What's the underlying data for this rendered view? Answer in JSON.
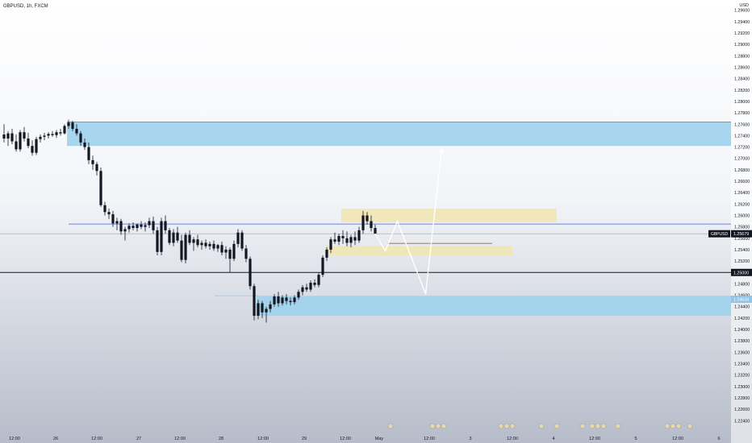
{
  "header": {
    "symbol_title": "GBPUSD, 1h, FXCM"
  },
  "price_axis": {
    "currency": "USD",
    "ticks": [
      "1.29600",
      "1.29400",
      "1.29200",
      "1.29000",
      "1.28800",
      "1.28600",
      "1.28400",
      "1.28200",
      "1.28000",
      "1.27800",
      "1.27600",
      "1.27400",
      "1.27200",
      "1.27000",
      "1.26800",
      "1.26600",
      "1.26400",
      "1.26200",
      "1.26000",
      "1.25800",
      "1.25600",
      "1.25400",
      "1.25200",
      "1.25000",
      "1.24800",
      "1.24600",
      "1.24400",
      "1.24200",
      "1.24000",
      "1.23800",
      "1.23600",
      "1.23400",
      "1.23200",
      "1.23000",
      "1.22800",
      "1.22600",
      "1.22400"
    ],
    "current_price_label": {
      "symbol": "GBPUSD",
      "value": "1.25679"
    },
    "level_label": "1.25000",
    "blue_zone_label": "1.24534"
  },
  "time_axis": {
    "ticks": [
      "12:00",
      "26",
      "12:00",
      "27",
      "12:00",
      "28",
      "12:00",
      "29",
      "12:00",
      "May",
      "12:00",
      "3",
      "12:00",
      "4",
      "12:00",
      "5",
      "12:00",
      "6"
    ]
  },
  "colors": {
    "blue_zone": "#9fd1ec",
    "yellow_zone": "#efe7b4",
    "candle": "#131722",
    "level_line": "#131722",
    "blue_line": "#4a61c9",
    "projection": "#ffffff"
  },
  "chart_data": {
    "type": "candlestick",
    "title": "GBPUSD, 1h, FXCM",
    "ylim": [
      1.2222,
      1.2978
    ],
    "y_ticks": [
      1.296,
      1.294,
      1.292,
      1.29,
      1.288,
      1.286,
      1.284,
      1.282,
      1.28,
      1.278,
      1.276,
      1.274,
      1.272,
      1.27,
      1.268,
      1.266,
      1.264,
      1.262,
      1.26,
      1.258,
      1.256,
      1.254,
      1.252,
      1.25,
      1.248,
      1.246,
      1.244,
      1.242,
      1.24,
      1.238,
      1.236,
      1.234,
      1.232,
      1.23,
      1.228,
      1.226,
      1.224
    ],
    "x_ticks": [
      "12:00",
      "26",
      "12:00",
      "27",
      "12:00",
      "28",
      "12:00",
      "29",
      "12:00",
      "May",
      "12:00",
      "3",
      "12:00",
      "4",
      "12:00",
      "5",
      "12:00",
      "6"
    ],
    "candles": [
      {
        "o": 1.2742,
        "h": 1.276,
        "l": 1.2728,
        "c": 1.2735
      },
      {
        "o": 1.2735,
        "h": 1.2748,
        "l": 1.2722,
        "c": 1.2744
      },
      {
        "o": 1.2744,
        "h": 1.2752,
        "l": 1.2725,
        "c": 1.273
      },
      {
        "o": 1.273,
        "h": 1.2742,
        "l": 1.2712,
        "c": 1.2716
      },
      {
        "o": 1.2716,
        "h": 1.275,
        "l": 1.2712,
        "c": 1.2746
      },
      {
        "o": 1.2746,
        "h": 1.2755,
        "l": 1.273,
        "c": 1.2735
      },
      {
        "o": 1.2735,
        "h": 1.2745,
        "l": 1.2718,
        "c": 1.2722
      },
      {
        "o": 1.2722,
        "h": 1.2732,
        "l": 1.2705,
        "c": 1.271
      },
      {
        "o": 1.271,
        "h": 1.2738,
        "l": 1.2706,
        "c": 1.2734
      },
      {
        "o": 1.2734,
        "h": 1.2742,
        "l": 1.2728,
        "c": 1.2738
      },
      {
        "o": 1.2738,
        "h": 1.2745,
        "l": 1.2732,
        "c": 1.274
      },
      {
        "o": 1.274,
        "h": 1.2746,
        "l": 1.2735,
        "c": 1.2743
      },
      {
        "o": 1.2743,
        "h": 1.2748,
        "l": 1.2738,
        "c": 1.2741
      },
      {
        "o": 1.2741,
        "h": 1.275,
        "l": 1.2736,
        "c": 1.2746
      },
      {
        "o": 1.2746,
        "h": 1.2752,
        "l": 1.274,
        "c": 1.2744
      },
      {
        "o": 1.2744,
        "h": 1.276,
        "l": 1.2742,
        "c": 1.2757
      },
      {
        "o": 1.2757,
        "h": 1.2768,
        "l": 1.2752,
        "c": 1.2763
      },
      {
        "o": 1.2763,
        "h": 1.2766,
        "l": 1.2748,
        "c": 1.2752
      },
      {
        "o": 1.2752,
        "h": 1.276,
        "l": 1.274,
        "c": 1.2744
      },
      {
        "o": 1.2744,
        "h": 1.2748,
        "l": 1.2722,
        "c": 1.2728
      },
      {
        "o": 1.2728,
        "h": 1.2735,
        "l": 1.2715,
        "c": 1.272
      },
      {
        "o": 1.272,
        "h": 1.2728,
        "l": 1.269,
        "c": 1.2697
      },
      {
        "o": 1.2697,
        "h": 1.2705,
        "l": 1.268,
        "c": 1.269
      },
      {
        "o": 1.269,
        "h": 1.2694,
        "l": 1.267,
        "c": 1.2678
      },
      {
        "o": 1.2678,
        "h": 1.2684,
        "l": 1.2615,
        "c": 1.2618
      },
      {
        "o": 1.2618,
        "h": 1.2624,
        "l": 1.26,
        "c": 1.2606
      },
      {
        "o": 1.2606,
        "h": 1.2612,
        "l": 1.2594,
        "c": 1.2602
      },
      {
        "o": 1.2602,
        "h": 1.2608,
        "l": 1.258,
        "c": 1.2586
      },
      {
        "o": 1.2586,
        "h": 1.2596,
        "l": 1.2574,
        "c": 1.259
      },
      {
        "o": 1.259,
        "h": 1.2594,
        "l": 1.2566,
        "c": 1.2572
      },
      {
        "o": 1.2572,
        "h": 1.258,
        "l": 1.2556,
        "c": 1.2576
      },
      {
        "o": 1.2576,
        "h": 1.2586,
        "l": 1.257,
        "c": 1.2582
      },
      {
        "o": 1.2582,
        "h": 1.2588,
        "l": 1.2574,
        "c": 1.2578
      },
      {
        "o": 1.2578,
        "h": 1.2586,
        "l": 1.2572,
        "c": 1.2584
      },
      {
        "o": 1.2584,
        "h": 1.259,
        "l": 1.2576,
        "c": 1.258
      },
      {
        "o": 1.258,
        "h": 1.2588,
        "l": 1.2572,
        "c": 1.2583
      },
      {
        "o": 1.2583,
        "h": 1.2596,
        "l": 1.2578,
        "c": 1.259
      },
      {
        "o": 1.259,
        "h": 1.2598,
        "l": 1.2568,
        "c": 1.2574
      },
      {
        "o": 1.2574,
        "h": 1.258,
        "l": 1.253,
        "c": 1.2536
      },
      {
        "o": 1.2536,
        "h": 1.2596,
        "l": 1.253,
        "c": 1.259
      },
      {
        "o": 1.259,
        "h": 1.26,
        "l": 1.2568,
        "c": 1.2574
      },
      {
        "o": 1.2574,
        "h": 1.2578,
        "l": 1.2548,
        "c": 1.2552
      },
      {
        "o": 1.2552,
        "h": 1.2576,
        "l": 1.2546,
        "c": 1.257
      },
      {
        "o": 1.257,
        "h": 1.258,
        "l": 1.2552,
        "c": 1.2556
      },
      {
        "o": 1.2556,
        "h": 1.2566,
        "l": 1.2518,
        "c": 1.2522
      },
      {
        "o": 1.2522,
        "h": 1.257,
        "l": 1.2516,
        "c": 1.2566
      },
      {
        "o": 1.2566,
        "h": 1.2574,
        "l": 1.2548,
        "c": 1.2552
      },
      {
        "o": 1.2552,
        "h": 1.2562,
        "l": 1.2538,
        "c": 1.2558
      },
      {
        "o": 1.2558,
        "h": 1.2566,
        "l": 1.2544,
        "c": 1.2548
      },
      {
        "o": 1.2548,
        "h": 1.2556,
        "l": 1.254,
        "c": 1.2552
      },
      {
        "o": 1.2552,
        "h": 1.2558,
        "l": 1.2542,
        "c": 1.2546
      },
      {
        "o": 1.2546,
        "h": 1.2554,
        "l": 1.254,
        "c": 1.255
      },
      {
        "o": 1.255,
        "h": 1.2556,
        "l": 1.2538,
        "c": 1.2542
      },
      {
        "o": 1.2542,
        "h": 1.255,
        "l": 1.2536,
        "c": 1.2548
      },
      {
        "o": 1.2548,
        "h": 1.2554,
        "l": 1.253,
        "c": 1.2535
      },
      {
        "o": 1.2535,
        "h": 1.2546,
        "l": 1.2524,
        "c": 1.254
      },
      {
        "o": 1.254,
        "h": 1.2544,
        "l": 1.25,
        "c": 1.2524
      },
      {
        "o": 1.2524,
        "h": 1.2556,
        "l": 1.252,
        "c": 1.255
      },
      {
        "o": 1.255,
        "h": 1.2576,
        "l": 1.2544,
        "c": 1.257
      },
      {
        "o": 1.257,
        "h": 1.2574,
        "l": 1.2538,
        "c": 1.2542
      },
      {
        "o": 1.2542,
        "h": 1.2548,
        "l": 1.2518,
        "c": 1.2524
      },
      {
        "o": 1.2524,
        "h": 1.2528,
        "l": 1.247,
        "c": 1.2476
      },
      {
        "o": 1.2476,
        "h": 1.248,
        "l": 1.2416,
        "c": 1.2424
      },
      {
        "o": 1.2424,
        "h": 1.2452,
        "l": 1.2418,
        "c": 1.2446
      },
      {
        "o": 1.2446,
        "h": 1.245,
        "l": 1.242,
        "c": 1.243
      },
      {
        "o": 1.243,
        "h": 1.244,
        "l": 1.2412,
        "c": 1.2436
      },
      {
        "o": 1.2436,
        "h": 1.245,
        "l": 1.243,
        "c": 1.2444
      },
      {
        "o": 1.2444,
        "h": 1.2462,
        "l": 1.244,
        "c": 1.2458
      },
      {
        "o": 1.2458,
        "h": 1.2466,
        "l": 1.244,
        "c": 1.2446
      },
      {
        "o": 1.2446,
        "h": 1.246,
        "l": 1.2442,
        "c": 1.2456
      },
      {
        "o": 1.2456,
        "h": 1.2462,
        "l": 1.2444,
        "c": 1.245
      },
      {
        "o": 1.245,
        "h": 1.2456,
        "l": 1.2442,
        "c": 1.2448
      },
      {
        "o": 1.2448,
        "h": 1.246,
        "l": 1.2444,
        "c": 1.2456
      },
      {
        "o": 1.2456,
        "h": 1.247,
        "l": 1.2452,
        "c": 1.2466
      },
      {
        "o": 1.2466,
        "h": 1.2478,
        "l": 1.246,
        "c": 1.2474
      },
      {
        "o": 1.2474,
        "h": 1.248,
        "l": 1.2466,
        "c": 1.247
      },
      {
        "o": 1.247,
        "h": 1.2486,
        "l": 1.2466,
        "c": 1.2482
      },
      {
        "o": 1.2482,
        "h": 1.2488,
        "l": 1.2474,
        "c": 1.2478
      },
      {
        "o": 1.2478,
        "h": 1.25,
        "l": 1.2474,
        "c": 1.2496
      },
      {
        "o": 1.2496,
        "h": 1.253,
        "l": 1.2492,
        "c": 1.2526
      },
      {
        "o": 1.2526,
        "h": 1.2544,
        "l": 1.252,
        "c": 1.254
      },
      {
        "o": 1.254,
        "h": 1.2562,
        "l": 1.2534,
        "c": 1.2558
      },
      {
        "o": 1.2558,
        "h": 1.257,
        "l": 1.255,
        "c": 1.2554
      },
      {
        "o": 1.2554,
        "h": 1.2568,
        "l": 1.2548,
        "c": 1.2564
      },
      {
        "o": 1.2564,
        "h": 1.2574,
        "l": 1.255,
        "c": 1.256
      },
      {
        "o": 1.256,
        "h": 1.2572,
        "l": 1.2546,
        "c": 1.2552
      },
      {
        "o": 1.2552,
        "h": 1.2566,
        "l": 1.2544,
        "c": 1.2562
      },
      {
        "o": 1.2562,
        "h": 1.2572,
        "l": 1.2548,
        "c": 1.2556
      },
      {
        "o": 1.2556,
        "h": 1.258,
        "l": 1.2552,
        "c": 1.2574
      },
      {
        "o": 1.2574,
        "h": 1.2608,
        "l": 1.2568,
        "c": 1.26
      },
      {
        "o": 1.26,
        "h": 1.2606,
        "l": 1.2584,
        "c": 1.259
      },
      {
        "o": 1.259,
        "h": 1.26,
        "l": 1.2572,
        "c": 1.2578
      },
      {
        "o": 1.2578,
        "h": 1.2584,
        "l": 1.2568,
        "c": 1.2568
      }
    ],
    "zones": [
      {
        "color": "blue",
        "top": 1.2764,
        "bottom": 1.2722,
        "from": 16,
        "extends": true
      },
      {
        "color": "blue",
        "top": 1.2459,
        "bottom": 1.2424,
        "from": 63,
        "extends": true
      },
      {
        "color": "yellow",
        "top": 1.2612,
        "bottom": 1.2588,
        "from": 84,
        "to": 137
      },
      {
        "color": "yellow",
        "top": 1.2546,
        "bottom": 1.253,
        "from": 80,
        "to": 126
      }
    ],
    "level_line": 1.25,
    "last_price": 1.25679,
    "projection": [
      [
        92,
        1.2568
      ],
      [
        94.5,
        1.2538
      ],
      [
        97.5,
        1.259
      ],
      [
        104.5,
        1.2462
      ],
      [
        108.5,
        1.2718
      ]
    ],
    "event_icon_times": [
      95,
      106,
      107.5,
      108.5,
      122,
      123.5,
      125,
      130.5,
      133.5,
      142,
      143.5,
      145,
      146.5,
      148.5,
      163,
      164.5,
      166,
      167.5
    ]
  }
}
